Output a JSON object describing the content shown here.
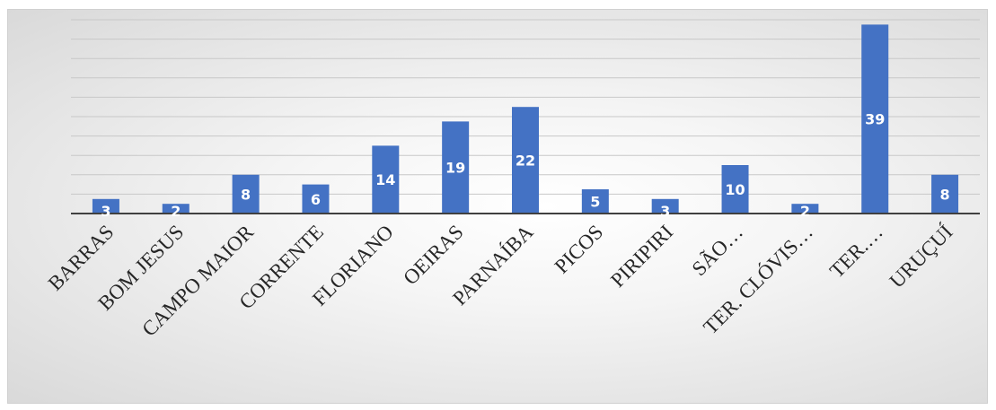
{
  "chart_data": {
    "type": "bar",
    "title": "",
    "xlabel": "",
    "ylabel": "",
    "categories": [
      "BARRAS",
      "BOM JESUS",
      "CAMPO MAIOR",
      "CORRENTE",
      "FLORIANO",
      "OEIRAS",
      "PARNAÍBA",
      "PICOS",
      "PIRIPIRI",
      "SÃO…",
      "TER. CLÓVIS…",
      "TER.…",
      "URUÇUÍ"
    ],
    "values": [
      3,
      2,
      8,
      6,
      14,
      19,
      22,
      5,
      3,
      10,
      2,
      39,
      8
    ],
    "ylim": [
      0,
      40
    ],
    "gridlines": true,
    "bar_color": "#4472c4",
    "label_color": "#ffffff",
    "axis_color": "#404040"
  }
}
